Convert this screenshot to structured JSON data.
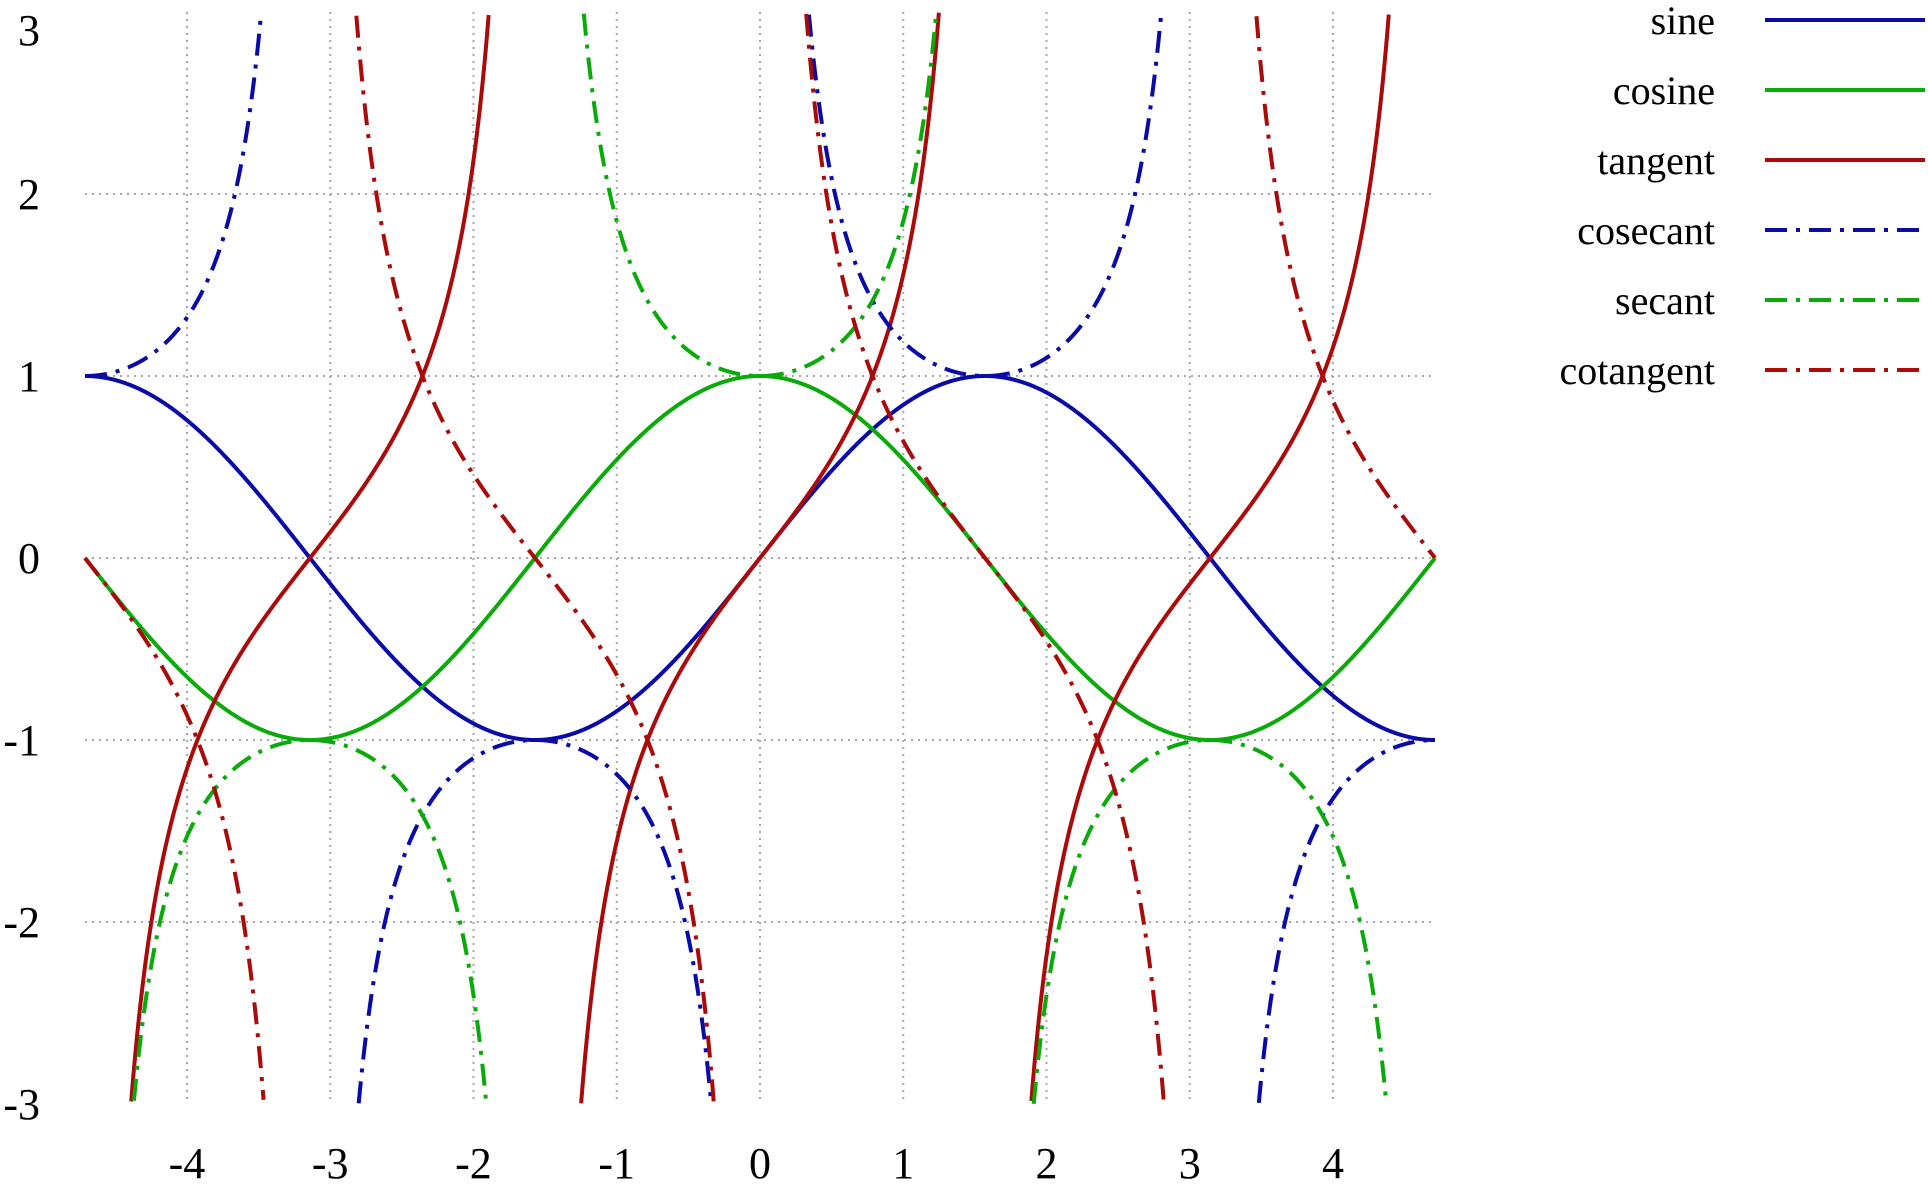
{
  "chart_data": {
    "type": "line",
    "title": "",
    "xlabel": "",
    "ylabel": "",
    "xlim": [
      -4.712,
      4.712
    ],
    "ylim": [
      -3,
      3
    ],
    "xticks": [
      -4,
      -3,
      -2,
      -1,
      0,
      1,
      2,
      3,
      4
    ],
    "xtick_labels": [
      "-4",
      "-3",
      "-2",
      "-1",
      "0",
      "1",
      "2",
      "3",
      "4"
    ],
    "yticks": [
      -3,
      -2,
      -1,
      0,
      1,
      2,
      3
    ],
    "ytick_labels": [
      "-3",
      "-2",
      "-1",
      "0",
      "1",
      "2",
      "3"
    ],
    "grid": true,
    "legend_position": "top-right, outside plot",
    "series": [
      {
        "name": "sine",
        "function": "sin",
        "color": "#0a0aa8",
        "dash": "solid"
      },
      {
        "name": "cosine",
        "function": "cos",
        "color": "#0aaa0a",
        "dash": "solid"
      },
      {
        "name": "tangent",
        "function": "tan",
        "color": "#aa0a0a",
        "dash": "solid"
      },
      {
        "name": "cosecant",
        "function": "csc",
        "color": "#0a0aa8",
        "dash": "dash-dot"
      },
      {
        "name": "secant",
        "function": "sec",
        "color": "#0aaa0a",
        "dash": "dash-dot"
      },
      {
        "name": "cotangent",
        "function": "cot",
        "color": "#aa0a0a",
        "dash": "dash-dot"
      }
    ]
  }
}
